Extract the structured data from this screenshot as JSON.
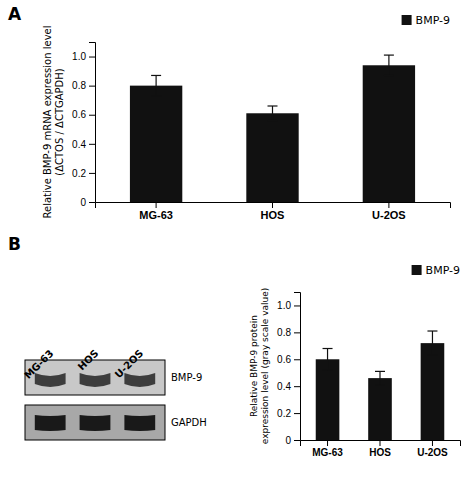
{
  "chart_data": [
    {
      "type": "bar",
      "title": "A",
      "y_label": "Relative BMP-9 mRNA expression level\n(ΔCTOS / ΔCTGAPDH)",
      "categories": [
        "MG-63",
        "HOS",
        "U-2OS"
      ],
      "series": [
        {
          "name": "BMP-9",
          "color": "#111111",
          "values": [
            0.8,
            0.61,
            0.94
          ],
          "errors": [
            0.07,
            0.05,
            0.07
          ]
        }
      ],
      "ylim": [
        0,
        1.1
      ],
      "yticks": [
        0,
        0.2,
        0.4,
        0.6,
        0.8,
        {
          "value": 1.0,
          "label": "1.0"
        }
      ],
      "grid": false,
      "legend": "upper right"
    },
    {
      "type": "blot",
      "title": "B",
      "categories": [
        "MG-63",
        "HOS",
        "U-2OS"
      ],
      "annotations": [
        "BMP-9",
        "GAPDH"
      ]
    },
    {
      "type": "bar",
      "y_label": "Relative BMP-9 protein\nexpression level (gray scale value)",
      "categories": [
        "MG-63",
        "HOS",
        "U-2OS"
      ],
      "series": [
        {
          "name": "BMP-9",
          "color": "#111111",
          "values": [
            0.6,
            0.46,
            0.72
          ],
          "errors": [
            0.08,
            0.05,
            0.09
          ]
        }
      ],
      "ylim": [
        0,
        1.1
      ],
      "yticks": [
        0,
        0.2,
        0.4,
        0.6,
        0.8,
        {
          "value": 1.0,
          "label": "1.0"
        }
      ],
      "grid": false,
      "legend": "upper right"
    }
  ]
}
